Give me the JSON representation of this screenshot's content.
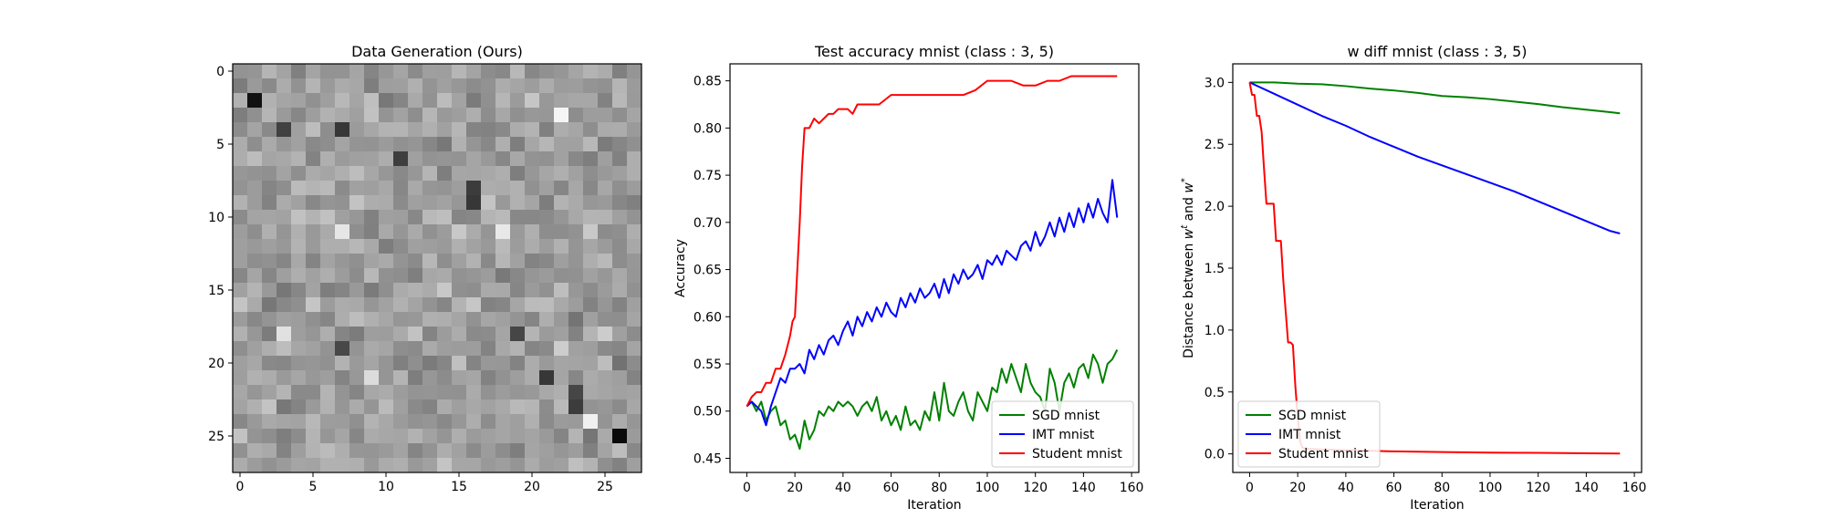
{
  "chart_data": [
    {
      "type": "heatmap",
      "title": "Data Generation (Ours)",
      "xlabel": "",
      "ylabel": "",
      "size": 28,
      "xticks": [
        0,
        5,
        10,
        15,
        20,
        25
      ],
      "yticks": [
        0,
        5,
        10,
        15,
        20,
        25
      ],
      "xlim": [
        -0.5,
        27.5
      ],
      "ylim": [
        27.5,
        -0.5
      ],
      "colormap": "gray",
      "grid": false
    },
    {
      "type": "line",
      "title": "Test accuracy mnist (class : 3, 5)",
      "xlabel": "Iteration",
      "ylabel": "Accuracy",
      "xlim": [
        -7,
        163
      ],
      "ylim": [
        0.435,
        0.868
      ],
      "xticks": [
        0,
        20,
        40,
        60,
        80,
        100,
        120,
        140,
        160
      ],
      "yticks": [
        "0.45",
        "0.50",
        "0.55",
        "0.60",
        "0.65",
        "0.70",
        "0.75",
        "0.80",
        "0.85"
      ],
      "legend_position": "lower-right",
      "grid": false,
      "series": [
        {
          "name": "SGD mnist",
          "color": "#008000",
          "x": [
            0,
            2,
            4,
            6,
            8,
            10,
            12,
            14,
            16,
            18,
            20,
            22,
            24,
            26,
            28,
            30,
            32,
            34,
            36,
            38,
            40,
            42,
            44,
            46,
            48,
            50,
            52,
            54,
            56,
            58,
            60,
            62,
            64,
            66,
            68,
            70,
            72,
            74,
            76,
            78,
            80,
            82,
            84,
            86,
            88,
            90,
            92,
            94,
            96,
            98,
            100,
            102,
            104,
            106,
            108,
            110,
            112,
            114,
            116,
            118,
            120,
            122,
            124,
            126,
            128,
            130,
            132,
            134,
            136,
            138,
            140,
            142,
            144,
            146,
            148,
            150,
            152,
            154
          ],
          "values": [
            0.505,
            0.51,
            0.5,
            0.51,
            0.49,
            0.5,
            0.505,
            0.485,
            0.49,
            0.47,
            0.475,
            0.46,
            0.49,
            0.47,
            0.48,
            0.5,
            0.495,
            0.505,
            0.5,
            0.51,
            0.505,
            0.51,
            0.505,
            0.495,
            0.505,
            0.51,
            0.5,
            0.515,
            0.49,
            0.5,
            0.485,
            0.495,
            0.48,
            0.505,
            0.485,
            0.49,
            0.48,
            0.5,
            0.49,
            0.52,
            0.49,
            0.53,
            0.5,
            0.495,
            0.51,
            0.52,
            0.5,
            0.49,
            0.52,
            0.51,
            0.5,
            0.525,
            0.52,
            0.545,
            0.53,
            0.55,
            0.535,
            0.52,
            0.55,
            0.53,
            0.52,
            0.515,
            0.5,
            0.545,
            0.53,
            0.5,
            0.53,
            0.54,
            0.525,
            0.545,
            0.55,
            0.535,
            0.56,
            0.55,
            0.53,
            0.55,
            0.555,
            0.565
          ]
        },
        {
          "name": "IMT mnist",
          "color": "#0000ff",
          "x": [
            0,
            2,
            4,
            6,
            8,
            10,
            12,
            14,
            16,
            18,
            20,
            22,
            24,
            26,
            28,
            30,
            32,
            34,
            36,
            38,
            40,
            42,
            44,
            46,
            48,
            50,
            52,
            54,
            56,
            58,
            60,
            62,
            64,
            66,
            68,
            70,
            72,
            74,
            76,
            78,
            80,
            82,
            84,
            86,
            88,
            90,
            92,
            94,
            96,
            98,
            100,
            102,
            104,
            106,
            108,
            110,
            112,
            114,
            116,
            118,
            120,
            122,
            124,
            126,
            128,
            130,
            132,
            134,
            136,
            138,
            140,
            142,
            144,
            146,
            148,
            150,
            152,
            154
          ],
          "values": [
            0.505,
            0.51,
            0.505,
            0.5,
            0.485,
            0.505,
            0.52,
            0.535,
            0.53,
            0.545,
            0.545,
            0.55,
            0.54,
            0.565,
            0.555,
            0.57,
            0.56,
            0.575,
            0.58,
            0.57,
            0.585,
            0.595,
            0.58,
            0.6,
            0.59,
            0.605,
            0.595,
            0.61,
            0.6,
            0.615,
            0.605,
            0.6,
            0.62,
            0.61,
            0.625,
            0.615,
            0.63,
            0.62,
            0.625,
            0.635,
            0.62,
            0.64,
            0.625,
            0.645,
            0.635,
            0.65,
            0.64,
            0.645,
            0.655,
            0.64,
            0.66,
            0.655,
            0.665,
            0.655,
            0.67,
            0.665,
            0.66,
            0.675,
            0.68,
            0.67,
            0.69,
            0.675,
            0.685,
            0.7,
            0.685,
            0.705,
            0.69,
            0.71,
            0.695,
            0.715,
            0.7,
            0.72,
            0.705,
            0.725,
            0.71,
            0.7,
            0.745,
            0.705
          ]
        },
        {
          "name": "Student mnist",
          "color": "#ff0000",
          "x": [
            0,
            2,
            4,
            6,
            8,
            10,
            12,
            14,
            16,
            18,
            19,
            20,
            21,
            22,
            23,
            24,
            25,
            26,
            28,
            30,
            32,
            34,
            36,
            38,
            40,
            42,
            44,
            46,
            48,
            50,
            55,
            60,
            65,
            70,
            75,
            80,
            85,
            90,
            95,
            100,
            105,
            110,
            115,
            120,
            125,
            130,
            135,
            140,
            145,
            150,
            154
          ],
          "values": [
            0.505,
            0.515,
            0.52,
            0.52,
            0.53,
            0.53,
            0.545,
            0.545,
            0.56,
            0.58,
            0.595,
            0.6,
            0.65,
            0.7,
            0.76,
            0.8,
            0.8,
            0.8,
            0.81,
            0.805,
            0.81,
            0.815,
            0.815,
            0.82,
            0.82,
            0.82,
            0.815,
            0.825,
            0.825,
            0.825,
            0.825,
            0.835,
            0.835,
            0.835,
            0.835,
            0.835,
            0.835,
            0.835,
            0.84,
            0.85,
            0.85,
            0.85,
            0.845,
            0.845,
            0.85,
            0.85,
            0.855,
            0.855,
            0.855,
            0.855,
            0.855
          ]
        }
      ]
    },
    {
      "type": "line",
      "title": "w diff mnist (class : 3, 5)",
      "xlabel": "Iteration",
      "ylabel": "Distance between w^t and w^*",
      "xlim": [
        -7,
        163
      ],
      "ylim": [
        -0.15,
        3.15
      ],
      "xticks": [
        0,
        20,
        40,
        60,
        80,
        100,
        120,
        140,
        160
      ],
      "yticks": [
        "0.0",
        "0.5",
        "1.0",
        "1.5",
        "2.0",
        "2.5",
        "3.0"
      ],
      "legend_position": "lower-left",
      "grid": false,
      "series": [
        {
          "name": "SGD mnist",
          "color": "#008000",
          "x": [
            0,
            10,
            20,
            30,
            40,
            50,
            60,
            70,
            80,
            90,
            100,
            110,
            120,
            130,
            140,
            150,
            154
          ],
          "values": [
            3.0,
            3.0,
            2.99,
            2.985,
            2.97,
            2.95,
            2.935,
            2.915,
            2.89,
            2.88,
            2.865,
            2.845,
            2.825,
            2.8,
            2.78,
            2.76,
            2.75
          ]
        },
        {
          "name": "IMT mnist",
          "color": "#0000ff",
          "x": [
            0,
            10,
            20,
            30,
            40,
            50,
            60,
            70,
            80,
            90,
            100,
            110,
            120,
            130,
            140,
            150,
            154
          ],
          "values": [
            3.0,
            2.91,
            2.82,
            2.73,
            2.65,
            2.56,
            2.48,
            2.4,
            2.33,
            2.26,
            2.19,
            2.12,
            2.04,
            1.96,
            1.88,
            1.8,
            1.78
          ]
        },
        {
          "name": "Student mnist",
          "color": "#ff0000",
          "x": [
            0,
            1,
            2,
            3,
            4,
            5,
            6,
            7,
            8,
            9,
            10,
            11,
            12,
            13,
            14,
            15,
            16,
            17,
            18,
            19,
            20,
            21,
            22,
            23,
            25,
            30,
            40,
            60,
            80,
            100,
            120,
            140,
            154
          ],
          "values": [
            3.0,
            2.9,
            2.9,
            2.73,
            2.73,
            2.6,
            2.3,
            2.02,
            2.02,
            2.02,
            2.02,
            1.72,
            1.72,
            1.72,
            1.4,
            1.15,
            0.9,
            0.9,
            0.88,
            0.55,
            0.3,
            0.1,
            0.05,
            0.045,
            0.04,
            0.035,
            0.03,
            0.02,
            0.015,
            0.01,
            0.008,
            0.005,
            0.003
          ]
        }
      ]
    }
  ]
}
